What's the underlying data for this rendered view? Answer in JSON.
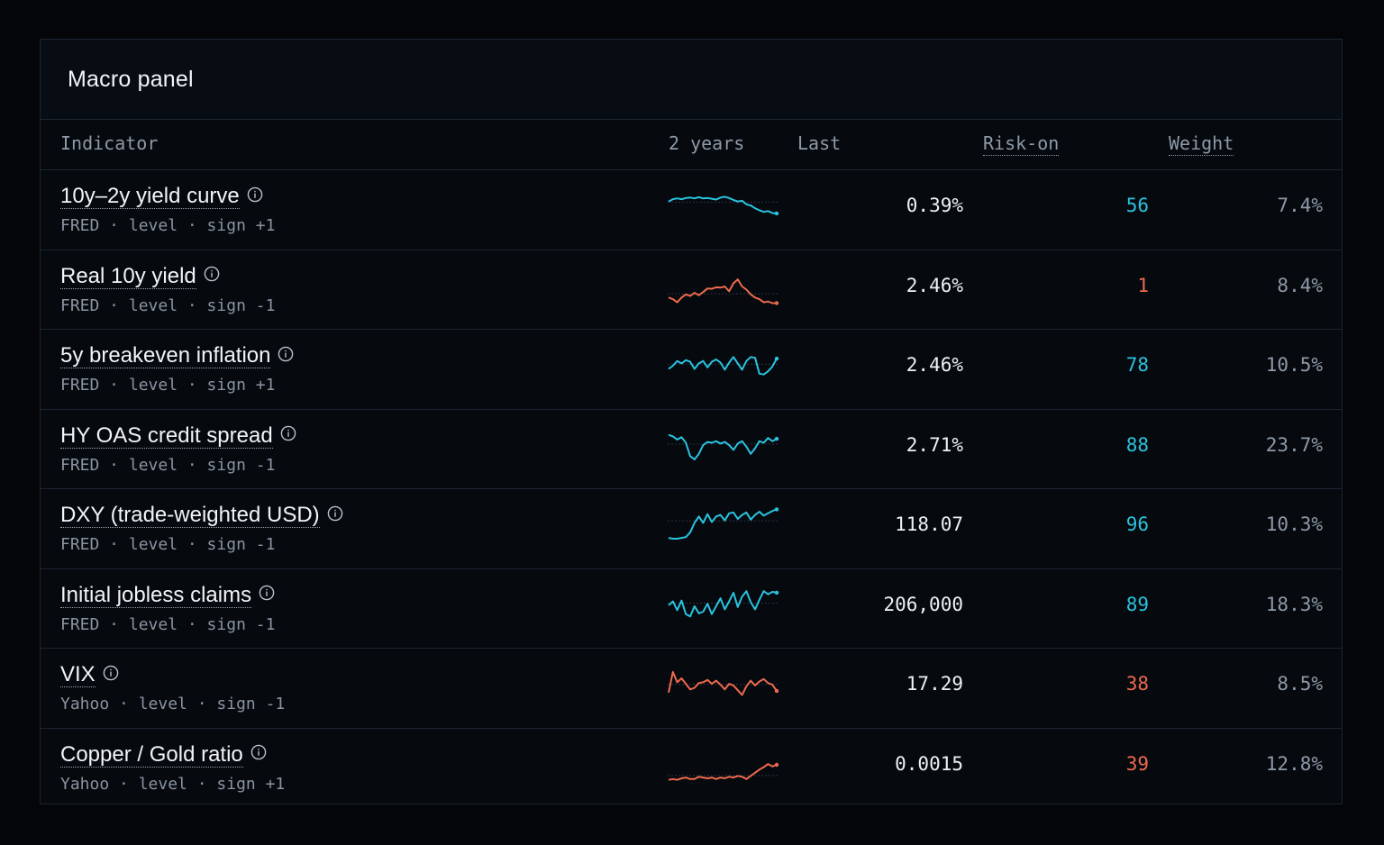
{
  "panel": {
    "title": "Macro panel"
  },
  "columns": {
    "indicator": "Indicator",
    "spark": "2 years",
    "last": "Last",
    "risk_on": "Risk-on",
    "weight": "Weight"
  },
  "colors": {
    "positive": "#29c4e0",
    "negative": "#ee6a4d"
  },
  "rows": [
    {
      "name": "10y–2y yield curve",
      "meta": "FRED · level · sign +1",
      "last": "0.39%",
      "risk_on": "56",
      "weight": "7.4%",
      "trend": "positive",
      "spark": [
        0.62,
        0.68,
        0.7,
        0.68,
        0.71,
        0.72,
        0.7,
        0.73,
        0.7,
        0.71,
        0.69,
        0.67,
        0.72,
        0.74,
        0.71,
        0.66,
        0.62,
        0.64,
        0.55,
        0.52,
        0.45,
        0.4,
        0.36,
        0.38,
        0.33,
        0.32
      ]
    },
    {
      "name": "Real 10y yield",
      "meta": "FRED · level · sign -1",
      "last": "2.46%",
      "risk_on": "1",
      "weight": "8.4%",
      "trend": "negative",
      "spark": [
        0.22,
        0.18,
        0.1,
        0.22,
        0.3,
        0.26,
        0.34,
        0.28,
        0.36,
        0.45,
        0.44,
        0.48,
        0.47,
        0.5,
        0.38,
        0.58,
        0.68,
        0.5,
        0.42,
        0.3,
        0.22,
        0.18,
        0.1,
        0.12,
        0.08,
        0.08
      ]
    },
    {
      "name": "5y breakeven inflation",
      "meta": "FRED · level · sign +1",
      "last": "2.46%",
      "risk_on": "78",
      "weight": "10.5%",
      "trend": "positive",
      "spark": [
        0.42,
        0.5,
        0.62,
        0.56,
        0.64,
        0.6,
        0.42,
        0.56,
        0.62,
        0.46,
        0.6,
        0.66,
        0.58,
        0.4,
        0.58,
        0.72,
        0.56,
        0.4,
        0.62,
        0.72,
        0.7,
        0.3,
        0.28,
        0.36,
        0.48,
        0.68
      ]
    },
    {
      "name": "HY OAS credit spread",
      "meta": "FRED · level · sign -1",
      "last": "2.71%",
      "risk_on": "88",
      "weight": "23.7%",
      "trend": "positive",
      "spark": [
        0.78,
        0.74,
        0.66,
        0.72,
        0.58,
        0.24,
        0.16,
        0.3,
        0.52,
        0.6,
        0.58,
        0.62,
        0.56,
        0.6,
        0.52,
        0.4,
        0.56,
        0.62,
        0.48,
        0.3,
        0.44,
        0.62,
        0.58,
        0.7,
        0.62,
        0.68
      ]
    },
    {
      "name": "DXY (trade-weighted USD)",
      "meta": "FRED · level · sign -1",
      "last": "118.07",
      "risk_on": "96",
      "weight": "10.3%",
      "trend": "positive",
      "spark": [
        0.18,
        0.16,
        0.16,
        0.18,
        0.2,
        0.32,
        0.56,
        0.72,
        0.56,
        0.78,
        0.58,
        0.72,
        0.76,
        0.62,
        0.8,
        0.82,
        0.66,
        0.76,
        0.82,
        0.64,
        0.76,
        0.84,
        0.74,
        0.8,
        0.86,
        0.9
      ]
    },
    {
      "name": "Initial jobless claims",
      "meta": "FRED · level · sign -1",
      "last": "206,000",
      "risk_on": "89",
      "weight": "18.3%",
      "trend": "positive",
      "spark": [
        0.5,
        0.6,
        0.38,
        0.62,
        0.28,
        0.22,
        0.48,
        0.3,
        0.34,
        0.54,
        0.28,
        0.48,
        0.68,
        0.4,
        0.6,
        0.82,
        0.46,
        0.72,
        0.86,
        0.58,
        0.4,
        0.64,
        0.86,
        0.78,
        0.84,
        0.82
      ]
    },
    {
      "name": "VIX",
      "meta": "Yahoo · level · sign -1",
      "last": "17.29",
      "risk_on": "38",
      "weight": "8.5%",
      "trend": "negative",
      "spark": [
        0.3,
        0.82,
        0.56,
        0.66,
        0.52,
        0.38,
        0.42,
        0.54,
        0.56,
        0.62,
        0.52,
        0.6,
        0.5,
        0.38,
        0.52,
        0.48,
        0.36,
        0.24,
        0.46,
        0.6,
        0.48,
        0.58,
        0.64,
        0.54,
        0.5,
        0.34
      ]
    },
    {
      "name": "Copper / Gold ratio",
      "meta": "Yahoo · level · sign +1",
      "last": "0.0015",
      "risk_on": "39",
      "weight": "12.8%",
      "trend": "negative",
      "spark": [
        0.12,
        0.14,
        0.12,
        0.16,
        0.18,
        0.14,
        0.14,
        0.2,
        0.18,
        0.16,
        0.18,
        0.14,
        0.18,
        0.16,
        0.2,
        0.18,
        0.22,
        0.2,
        0.14,
        0.22,
        0.3,
        0.38,
        0.44,
        0.52,
        0.46,
        0.5
      ]
    }
  ]
}
